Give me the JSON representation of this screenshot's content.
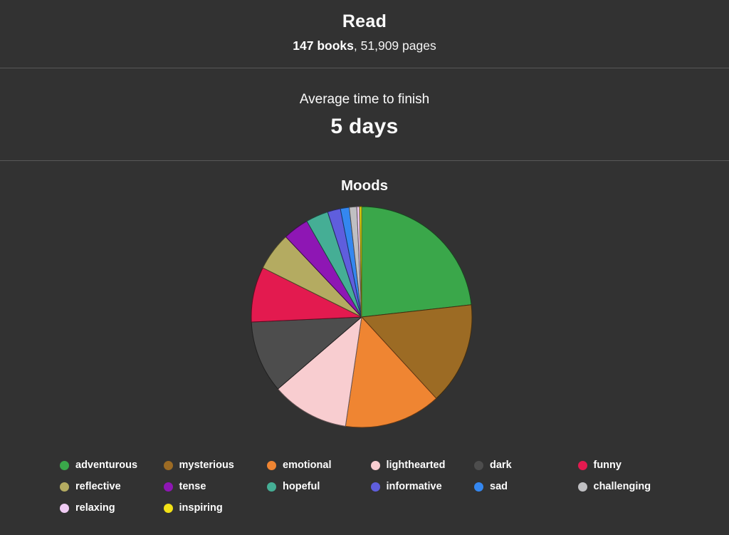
{
  "read_summary": {
    "title": "Read",
    "books": "147 books",
    "pages_suffix": ", 51,909 pages"
  },
  "average_time": {
    "label": "Average time to finish",
    "value": "5 days"
  },
  "chart_data": {
    "type": "pie",
    "title": "Moods",
    "categories": [
      "adventurous",
      "mysterious",
      "emotional",
      "lighthearted",
      "dark",
      "funny",
      "reflective",
      "tense",
      "hopeful",
      "informative",
      "sad",
      "challenging",
      "relaxing",
      "inspiring"
    ],
    "values": [
      23.3,
      15.0,
      14.2,
      11.4,
      10.6,
      8.1,
      5.6,
      3.8,
      3.3,
      1.9,
      1.3,
      1.1,
      0.4,
      0.3
    ],
    "unit": "percent",
    "colors": [
      "#3aa74a",
      "#9c6b24",
      "#ef8532",
      "#f8cdd0",
      "#4d4d4d",
      "#e31a4f",
      "#b4ab61",
      "#8e16b4",
      "#45ae95",
      "#5f5edd",
      "#3487f0",
      "#bfbfc2",
      "#f0ccf4",
      "#f2e117"
    ],
    "start_angle_deg": 0,
    "direction": "clockwise",
    "legend_position": "bottom"
  },
  "theme": {
    "background": "#323232",
    "divider": "#585858",
    "text": "#fbfbfb"
  }
}
